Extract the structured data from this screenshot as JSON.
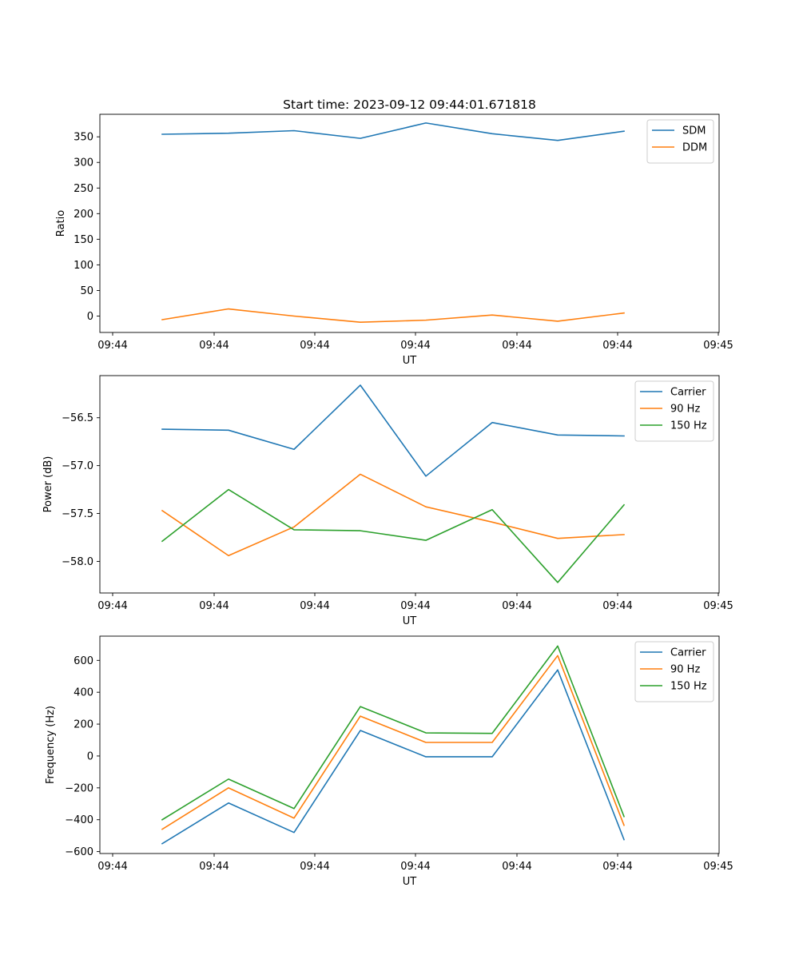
{
  "figure_title": "Start time: 2023-09-12 09:44:01.671818",
  "colors": {
    "blue": "#1f77b4",
    "orange": "#ff7f0e",
    "green": "#2ca02c"
  },
  "chart_data": [
    {
      "type": "line",
      "title": "Start time: 2023-09-12 09:44:01.671818",
      "xlabel": "UT",
      "ylabel": "Ratio",
      "x_tick_labels": [
        "09:44",
        "09:44",
        "09:44",
        "09:44",
        "09:44",
        "09:44",
        "09:45"
      ],
      "y_ticks": [
        0,
        50,
        100,
        150,
        200,
        250,
        300,
        350
      ],
      "ylim": [
        -32,
        394
      ],
      "x_index": [
        0,
        1,
        2,
        3,
        4,
        5,
        6,
        7
      ],
      "series": [
        {
          "name": "SDM",
          "color": "#1f77b4",
          "values": [
            355,
            357,
            362,
            347,
            377,
            356,
            343,
            361
          ]
        },
        {
          "name": "DDM",
          "color": "#ff7f0e",
          "values": [
            -7,
            14,
            0,
            -12,
            -8,
            2,
            -10,
            6
          ]
        }
      ],
      "legend": "top-right"
    },
    {
      "type": "line",
      "xlabel": "UT",
      "ylabel": "Power (dB)",
      "x_tick_labels": [
        "09:44",
        "09:44",
        "09:44",
        "09:44",
        "09:44",
        "09:44",
        "09:45"
      ],
      "y_ticks": [
        -58.0,
        -57.5,
        -57.0,
        -56.5
      ],
      "y_tick_labels": [
        "−58.0",
        "−57.5",
        "−57.0",
        "−56.5"
      ],
      "ylim": [
        -58.33,
        -56.06
      ],
      "x_index": [
        0,
        1,
        2,
        3,
        4,
        5,
        6,
        7
      ],
      "series": [
        {
          "name": "Carrier",
          "color": "#1f77b4",
          "values": [
            -56.62,
            -56.63,
            -56.83,
            -56.16,
            -57.11,
            -56.55,
            -56.68,
            -56.69
          ]
        },
        {
          "name": "90 Hz",
          "color": "#ff7f0e",
          "values": [
            -57.47,
            -57.94,
            -57.64,
            -57.09,
            -57.43,
            -57.59,
            -57.76,
            -57.72
          ]
        },
        {
          "name": "150 Hz",
          "color": "#2ca02c",
          "values": [
            -57.79,
            -57.25,
            -57.67,
            -57.68,
            -57.78,
            -57.46,
            -58.22,
            -57.41
          ]
        }
      ],
      "legend": "top-right"
    },
    {
      "type": "line",
      "xlabel": "UT",
      "ylabel": "Frequency (Hz)",
      "x_tick_labels": [
        "09:44",
        "09:44",
        "09:44",
        "09:44",
        "09:44",
        "09:44",
        "09:45"
      ],
      "y_ticks": [
        -600,
        -400,
        -200,
        0,
        200,
        400,
        600
      ],
      "y_tick_labels": [
        "−600",
        "−400",
        "−200",
        "0",
        "200",
        "400",
        "600"
      ],
      "ylim": [
        -612,
        752
      ],
      "x_index": [
        0,
        1,
        2,
        3,
        4,
        5,
        6,
        7
      ],
      "series": [
        {
          "name": "Carrier",
          "color": "#1f77b4",
          "values": [
            -550,
            -295,
            -480,
            160,
            -5,
            -5,
            540,
            -525
          ]
        },
        {
          "name": "90 Hz",
          "color": "#ff7f0e",
          "values": [
            -460,
            -200,
            -390,
            250,
            85,
            85,
            630,
            -435
          ]
        },
        {
          "name": "150 Hz",
          "color": "#2ca02c",
          "values": [
            -400,
            -145,
            -330,
            310,
            145,
            142,
            690,
            -380
          ]
        }
      ],
      "legend": "top-right"
    }
  ]
}
